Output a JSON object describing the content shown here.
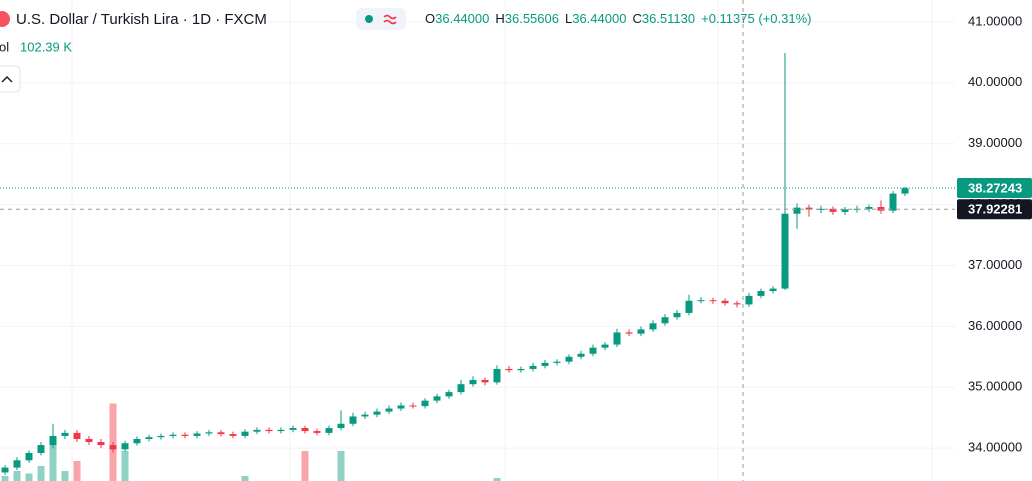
{
  "chart_data": {
    "type": "candlestick",
    "title": "U.S. Dollar / Turkish Lira · 1D · FXCM",
    "ohlc_legend": [
      {
        "key": "O",
        "value": "36.44000"
      },
      {
        "key": "H",
        "value": "36.55606"
      },
      {
        "key": "L",
        "value": "36.44000"
      },
      {
        "key": "C",
        "value": "36.51130"
      }
    ],
    "change": "+0.11375 (+0.31%)",
    "volume_label": "ol",
    "volume_value": "102.39 K",
    "up_color": "#089981",
    "down_color": "#f23645",
    "grid": true,
    "ylim": [
      33.46,
      41.36
    ],
    "yticks": [
      {
        "value": 34,
        "label": "34.00000"
      },
      {
        "value": 35,
        "label": "35.00000"
      },
      {
        "value": 36,
        "label": "36.00000"
      },
      {
        "value": 37,
        "label": "37.00000"
      },
      {
        "value": 38,
        "label": "38.00000"
      },
      {
        "value": 39,
        "label": "39.00000"
      },
      {
        "value": 40,
        "label": "40.00000"
      },
      {
        "value": 41,
        "label": "41.00000"
      }
    ],
    "last_price": 38.27243,
    "crosshair_price": 37.92281,
    "vlim": [
      0,
      800
    ],
    "open": [
      33.6,
      33.68,
      33.8,
      33.92,
      34.05,
      34.2,
      34.25,
      34.15,
      34.1,
      34.05,
      33.98,
      34.08,
      34.15,
      34.18,
      34.2,
      34.22,
      34.2,
      34.24,
      34.26,
      34.23,
      34.2,
      34.27,
      34.3,
      34.28,
      34.3,
      34.33,
      34.28,
      34.25,
      34.33,
      34.4,
      34.52,
      34.55,
      34.6,
      34.65,
      34.7,
      34.69,
      34.78,
      34.85,
      34.92,
      35.05,
      35.12,
      35.08,
      35.3,
      35.28,
      35.3,
      35.35,
      35.4,
      35.42,
      35.5,
      35.55,
      35.65,
      35.7,
      35.9,
      35.88,
      35.95,
      36.05,
      36.15,
      36.22,
      36.42,
      36.43,
      36.42,
      36.38,
      36.36,
      36.5,
      36.58,
      36.62,
      37.85,
      37.95,
      37.92,
      37.93,
      37.88,
      37.92,
      37.93,
      37.96,
      37.9,
      38.18
    ],
    "high": [
      33.72,
      33.85,
      33.96,
      34.1,
      34.4,
      34.3,
      34.3,
      34.2,
      34.15,
      34.1,
      34.12,
      34.19,
      34.22,
      34.24,
      34.26,
      34.26,
      34.28,
      34.3,
      34.3,
      34.27,
      34.31,
      34.34,
      34.34,
      34.34,
      34.37,
      34.37,
      34.32,
      34.37,
      34.62,
      34.58,
      34.6,
      34.65,
      34.7,
      34.75,
      34.75,
      34.82,
      34.89,
      34.96,
      35.12,
      35.18,
      35.16,
      35.36,
      35.35,
      35.34,
      35.4,
      35.45,
      35.46,
      35.54,
      35.6,
      35.7,
      35.74,
      35.96,
      35.95,
      36.0,
      36.1,
      36.2,
      36.27,
      36.52,
      36.48,
      36.47,
      36.46,
      36.42,
      36.55,
      36.62,
      36.66,
      40.49,
      38.02,
      38.0,
      37.98,
      37.97,
      37.96,
      37.98,
      38.0,
      38.07,
      38.22,
      38.29
    ],
    "low": [
      33.56,
      33.64,
      33.76,
      33.88,
      34.0,
      34.15,
      34.1,
      34.05,
      34.0,
      33.93,
      33.94,
      34.04,
      34.11,
      34.14,
      34.16,
      34.16,
      34.16,
      34.2,
      34.19,
      34.16,
      34.16,
      34.23,
      34.24,
      34.24,
      34.26,
      34.24,
      34.21,
      34.21,
      34.29,
      34.36,
      34.48,
      34.51,
      34.56,
      34.61,
      34.65,
      34.65,
      34.74,
      34.81,
      34.88,
      35.01,
      35.03,
      35.04,
      35.24,
      35.24,
      35.26,
      35.31,
      35.36,
      35.38,
      35.46,
      35.51,
      35.61,
      35.66,
      35.84,
      35.84,
      35.91,
      36.01,
      36.11,
      36.18,
      36.38,
      36.37,
      36.34,
      36.31,
      36.32,
      36.46,
      36.54,
      36.6,
      37.6,
      37.8,
      37.86,
      37.83,
      37.83,
      37.87,
      37.88,
      37.85,
      37.86,
      38.14
    ],
    "close": [
      33.68,
      33.8,
      33.92,
      34.05,
      34.2,
      34.25,
      34.15,
      34.1,
      34.05,
      33.98,
      34.08,
      34.15,
      34.18,
      34.2,
      34.22,
      34.2,
      34.24,
      34.26,
      34.23,
      34.2,
      34.27,
      34.3,
      34.28,
      34.3,
      34.33,
      34.28,
      34.25,
      34.33,
      34.4,
      34.52,
      34.55,
      34.6,
      34.65,
      34.7,
      34.69,
      34.78,
      34.85,
      34.92,
      35.05,
      35.12,
      35.08,
      35.3,
      35.28,
      35.3,
      35.35,
      35.4,
      35.42,
      35.5,
      35.55,
      35.65,
      35.7,
      35.9,
      35.88,
      35.95,
      36.05,
      36.15,
      36.22,
      36.42,
      36.43,
      36.42,
      36.38,
      36.36,
      36.5,
      36.58,
      36.62,
      37.85,
      37.95,
      37.92,
      37.93,
      37.88,
      37.92,
      37.93,
      37.96,
      37.9,
      38.18,
      38.27
    ],
    "volume": [
      40,
      80,
      60,
      120,
      360,
      80,
      160,
      0,
      0,
      620,
      240,
      0,
      0,
      0,
      0,
      0,
      0,
      0,
      0,
      0,
      40,
      0,
      0,
      0,
      0,
      240,
      0,
      0,
      240,
      0,
      0,
      0,
      0,
      0,
      0,
      0,
      0,
      0,
      0,
      0,
      0,
      24,
      0,
      0,
      0,
      0,
      0,
      0,
      0,
      0,
      0,
      0,
      0,
      0,
      0,
      0,
      0,
      0,
      0,
      0,
      0,
      0,
      0,
      0,
      0,
      0,
      0,
      0,
      0,
      0,
      0,
      0,
      0,
      0,
      0,
      0
    ]
  }
}
